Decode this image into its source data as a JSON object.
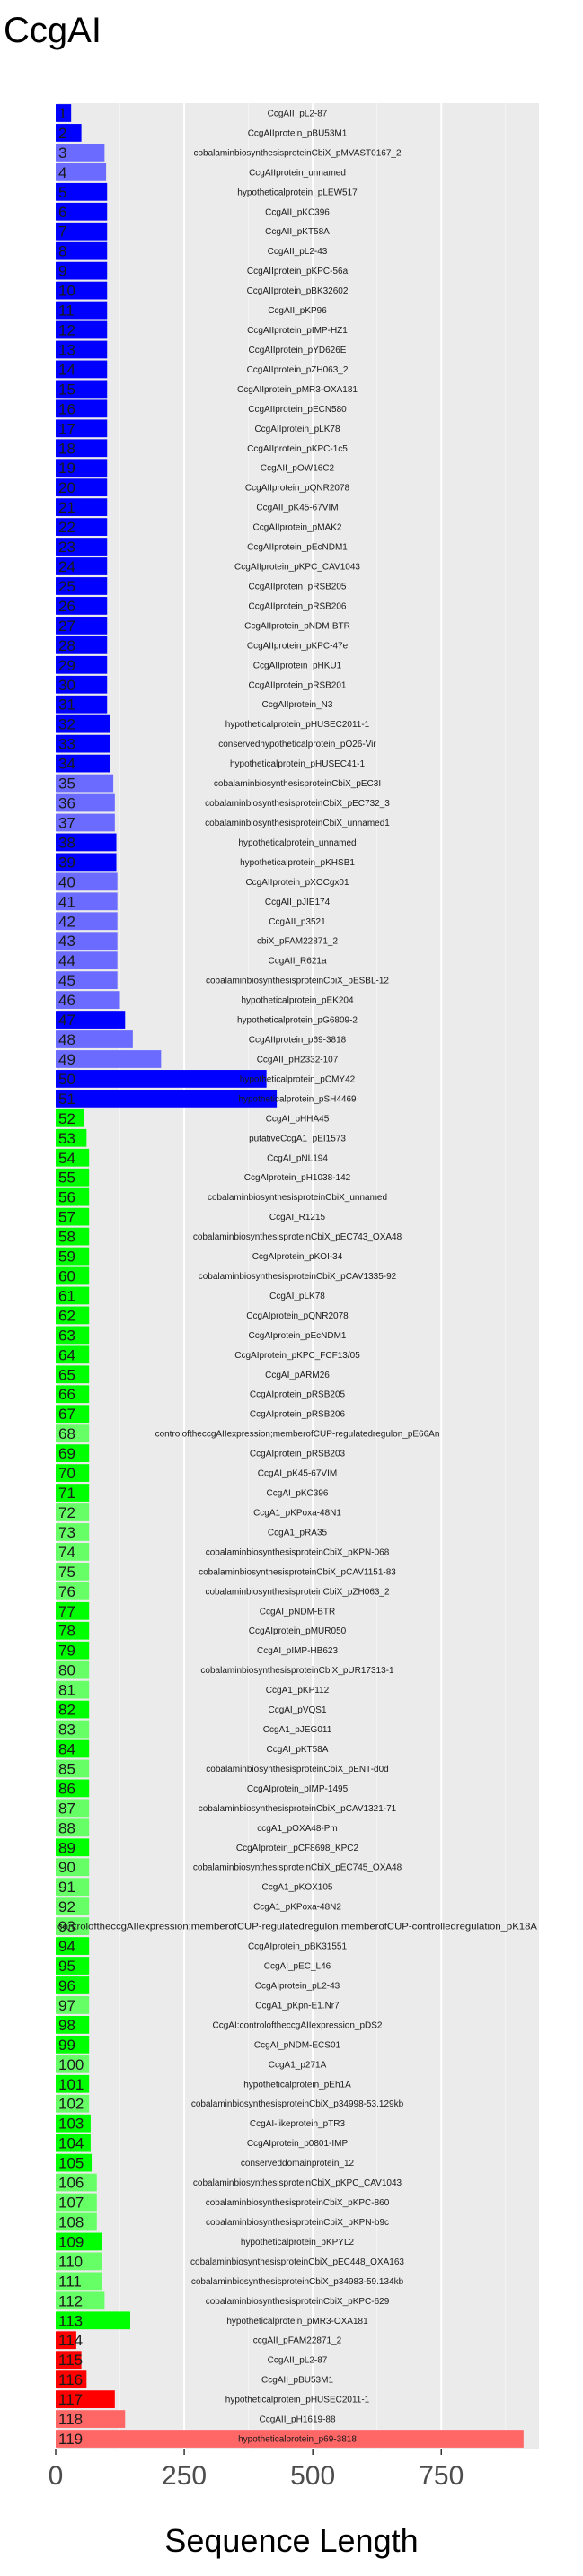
{
  "chart_data": {
    "type": "bar",
    "orientation": "horizontal",
    "title": "CcgAI",
    "xlabel": "Sequence Length",
    "ylabel": "",
    "xlim": [
      0,
      940
    ],
    "x_ticks": [
      0,
      250,
      500,
      750
    ],
    "grid": true,
    "legend": "none",
    "colors": {
      "panel": "#ebebeb",
      "grid_major": "#ffffff",
      "grid_minor": "#f5f5f5",
      "blue_dark": "#0000ff",
      "blue_light": "#6b6bff",
      "green_dark": "#00ff00",
      "green_light": "#66ff66",
      "red_dark": "#ff0000",
      "red_light": "#ff6666"
    },
    "bars": [
      {
        "id": "1",
        "label": "CcgAII_pL2-87",
        "value": 30,
        "color": "#0000ff"
      },
      {
        "id": "2",
        "label": "CcgAIIprotein_pBU53M1",
        "value": 50,
        "color": "#0000ff"
      },
      {
        "id": "3",
        "label": "cobalaminbiosynthesisproteinCbiX_pMVAST0167_2",
        "value": 95,
        "color": "#6b6bff"
      },
      {
        "id": "4",
        "label": "CcgAIIprotein_unnamed",
        "value": 98,
        "color": "#6b6bff"
      },
      {
        "id": "5",
        "label": "hypotheticalprotein_pLEW517",
        "value": 100,
        "color": "#0000ff"
      },
      {
        "id": "6",
        "label": "CcgAII_pKC396",
        "value": 100,
        "color": "#0000ff"
      },
      {
        "id": "7",
        "label": "CcgAII_pKT58A",
        "value": 100,
        "color": "#0000ff"
      },
      {
        "id": "8",
        "label": "CcgAII_pL2-43",
        "value": 100,
        "color": "#0000ff"
      },
      {
        "id": "9",
        "label": "CcgAIIprotein_pKPC-56a",
        "value": 100,
        "color": "#0000ff"
      },
      {
        "id": "10",
        "label": "CcgAIIprotein_pBK32602",
        "value": 100,
        "color": "#0000ff"
      },
      {
        "id": "11",
        "label": "CcgAII_pKP96",
        "value": 100,
        "color": "#0000ff"
      },
      {
        "id": "12",
        "label": "CcgAIIprotein_pIMP-HZ1",
        "value": 100,
        "color": "#0000ff"
      },
      {
        "id": "13",
        "label": "CcgAIIprotein_pYD626E",
        "value": 100,
        "color": "#0000ff"
      },
      {
        "id": "14",
        "label": "CcgAIIprotein_pZH063_2",
        "value": 100,
        "color": "#0000ff"
      },
      {
        "id": "15",
        "label": "CcgAIIprotein_pMR3-OXA181",
        "value": 100,
        "color": "#0000ff"
      },
      {
        "id": "16",
        "label": "CcgAIIprotein_pECN580",
        "value": 100,
        "color": "#0000ff"
      },
      {
        "id": "17",
        "label": "CcgAIIprotein_pLK78",
        "value": 100,
        "color": "#0000ff"
      },
      {
        "id": "18",
        "label": "CcgAIIprotein_pKPC-1c5",
        "value": 100,
        "color": "#0000ff"
      },
      {
        "id": "19",
        "label": "CcgAII_pOW16C2",
        "value": 100,
        "color": "#0000ff"
      },
      {
        "id": "20",
        "label": "CcgAIIprotein_pQNR2078",
        "value": 100,
        "color": "#0000ff"
      },
      {
        "id": "21",
        "label": "CcgAII_pK45-67VIM",
        "value": 100,
        "color": "#0000ff"
      },
      {
        "id": "22",
        "label": "CcgAIIprotein_pMAK2",
        "value": 100,
        "color": "#0000ff"
      },
      {
        "id": "23",
        "label": "CcgAIIprotein_pEcNDM1",
        "value": 100,
        "color": "#0000ff"
      },
      {
        "id": "24",
        "label": "CcgAIIprotein_pKPC_CAV1043",
        "value": 100,
        "color": "#0000ff"
      },
      {
        "id": "25",
        "label": "CcgAIIprotein_pRSB205",
        "value": 100,
        "color": "#0000ff"
      },
      {
        "id": "26",
        "label": "CcgAIIprotein_pRSB206",
        "value": 100,
        "color": "#0000ff"
      },
      {
        "id": "27",
        "label": "CcgAIIprotein_pNDM-BTR",
        "value": 100,
        "color": "#0000ff"
      },
      {
        "id": "28",
        "label": "CcgAIIprotein_pKPC-47e",
        "value": 100,
        "color": "#0000ff"
      },
      {
        "id": "29",
        "label": "CcgAIIprotein_pHKU1",
        "value": 100,
        "color": "#0000ff"
      },
      {
        "id": "30",
        "label": "CcgAIIprotein_pRSB201",
        "value": 100,
        "color": "#0000ff"
      },
      {
        "id": "31",
        "label": "CcgAIIprotein_N3",
        "value": 100,
        "color": "#0000ff"
      },
      {
        "id": "32",
        "label": "hypotheticalprotein_pHUSEC2011-1",
        "value": 105,
        "color": "#0000ff"
      },
      {
        "id": "33",
        "label": "conservedhypotheticalprotein_pO26-Vir",
        "value": 105,
        "color": "#0000ff"
      },
      {
        "id": "34",
        "label": "hypotheticalprotein_pHUSEC41-1",
        "value": 105,
        "color": "#0000ff"
      },
      {
        "id": "35",
        "label": "cobalaminbiosynthesisproteinCbiX_pEC3I",
        "value": 112,
        "color": "#6b6bff"
      },
      {
        "id": "36",
        "label": "cobalaminbiosynthesisproteinCbiX_pEC732_3",
        "value": 115,
        "color": "#6b6bff"
      },
      {
        "id": "37",
        "label": "cobalaminbiosynthesisproteinCbiX_unnamed1",
        "value": 115,
        "color": "#6b6bff"
      },
      {
        "id": "38",
        "label": "hypotheticalprotein_unnamed",
        "value": 118,
        "color": "#0000ff"
      },
      {
        "id": "39",
        "label": "hypotheticalprotein_pKHSB1",
        "value": 118,
        "color": "#0000ff"
      },
      {
        "id": "40",
        "label": "CcgAIIprotein_pXOCgx01",
        "value": 120,
        "color": "#6b6bff"
      },
      {
        "id": "41",
        "label": "CcgAII_pJIE174",
        "value": 120,
        "color": "#6b6bff"
      },
      {
        "id": "42",
        "label": "CcgAII_p3521",
        "value": 120,
        "color": "#6b6bff"
      },
      {
        "id": "43",
        "label": "cbiX_pFAM22871_2",
        "value": 120,
        "color": "#6b6bff"
      },
      {
        "id": "44",
        "label": "CcgAII_R621a",
        "value": 120,
        "color": "#6b6bff"
      },
      {
        "id": "45",
        "label": "cobalaminbiosynthesisproteinCbiX_pESBL-12",
        "value": 120,
        "color": "#6b6bff"
      },
      {
        "id": "46",
        "label": "hypotheticalprotein_pEK204",
        "value": 125,
        "color": "#6b6bff"
      },
      {
        "id": "47",
        "label": "hypotheticalprotein_pG6809-2",
        "value": 135,
        "color": "#0000ff"
      },
      {
        "id": "48",
        "label": "CcgAIIprotein_p69-3818",
        "value": 150,
        "color": "#6b6bff"
      },
      {
        "id": "49",
        "label": "CcgAII_pH2332-107",
        "value": 205,
        "color": "#6b6bff"
      },
      {
        "id": "50",
        "label": "hypotheticalprotein_pCMY42",
        "value": 410,
        "color": "#0000ff"
      },
      {
        "id": "51",
        "label": "hypotheticalprotein_pSH4469",
        "value": 430,
        "color": "#0000ff"
      },
      {
        "id": "52",
        "label": "CcgAI_pHHA45",
        "value": 55,
        "color": "#00ff00"
      },
      {
        "id": "53",
        "label": "putativeCcgA1_pEI1573",
        "value": 60,
        "color": "#00ff00"
      },
      {
        "id": "54",
        "label": "CcgAI_pNL194",
        "value": 65,
        "color": "#00ff00"
      },
      {
        "id": "55",
        "label": "CcgAIprotein_pH1038-142",
        "value": 65,
        "color": "#00ff00"
      },
      {
        "id": "56",
        "label": "cobalaminbiosynthesisproteinCbiX_unnamed",
        "value": 65,
        "color": "#00ff00"
      },
      {
        "id": "57",
        "label": "CcgAI_R1215",
        "value": 65,
        "color": "#00ff00"
      },
      {
        "id": "58",
        "label": "cobalaminbiosynthesisproteinCbiX_pEC743_OXA48",
        "value": 65,
        "color": "#00ff00"
      },
      {
        "id": "59",
        "label": "CcgAIprotein_pKOI-34",
        "value": 65,
        "color": "#00ff00"
      },
      {
        "id": "60",
        "label": "cobalaminbiosynthesisproteinCbiX_pCAV1335-92",
        "value": 65,
        "color": "#00ff00"
      },
      {
        "id": "61",
        "label": "CcgAI_pLK78",
        "value": 65,
        "color": "#00ff00"
      },
      {
        "id": "62",
        "label": "CcgAIprotein_pQNR2078",
        "value": 65,
        "color": "#00ff00"
      },
      {
        "id": "63",
        "label": "CcgAIprotein_pEcNDM1",
        "value": 65,
        "color": "#00ff00"
      },
      {
        "id": "64",
        "label": "CcgAIprotein_pKPC_FCF13/05",
        "value": 65,
        "color": "#00ff00"
      },
      {
        "id": "65",
        "label": "CcgAI_pARM26",
        "value": 65,
        "color": "#00ff00"
      },
      {
        "id": "66",
        "label": "CcgAIprotein_pRSB205",
        "value": 65,
        "color": "#00ff00"
      },
      {
        "id": "67",
        "label": "CcgAIprotein_pRSB206",
        "value": 65,
        "color": "#00ff00"
      },
      {
        "id": "68",
        "label": "controloftheccgAIIexpression;memberofCUP-regulatedregulon_pE66An",
        "value": 65,
        "color": "#66ff66"
      },
      {
        "id": "69",
        "label": "CcgAIprotein_pRSB203",
        "value": 65,
        "color": "#00ff00"
      },
      {
        "id": "70",
        "label": "CcgAI_pK45-67VIM",
        "value": 65,
        "color": "#00ff00"
      },
      {
        "id": "71",
        "label": "CcgAI_pKC396",
        "value": 65,
        "color": "#00ff00"
      },
      {
        "id": "72",
        "label": "CcgA1_pKPoxa-48N1",
        "value": 65,
        "color": "#66ff66"
      },
      {
        "id": "73",
        "label": "CcgA1_pRA35",
        "value": 65,
        "color": "#66ff66"
      },
      {
        "id": "74",
        "label": "cobalaminbiosynthesisproteinCbiX_pKPN-068",
        "value": 65,
        "color": "#66ff66"
      },
      {
        "id": "75",
        "label": "cobalaminbiosynthesisproteinCbiX_pCAV1151-83",
        "value": 65,
        "color": "#66ff66"
      },
      {
        "id": "76",
        "label": "cobalaminbiosynthesisproteinCbiX_pZH063_2",
        "value": 65,
        "color": "#66ff66"
      },
      {
        "id": "77",
        "label": "CcgAI_pNDM-BTR",
        "value": 65,
        "color": "#00ff00"
      },
      {
        "id": "78",
        "label": "CcgAIprotein_pMUR050",
        "value": 65,
        "color": "#00ff00"
      },
      {
        "id": "79",
        "label": "CcgAI_pIMP-HB623",
        "value": 65,
        "color": "#00ff00"
      },
      {
        "id": "80",
        "label": "cobalaminbiosynthesisproteinCbiX_pUR17313-1",
        "value": 65,
        "color": "#66ff66"
      },
      {
        "id": "81",
        "label": "CcgA1_pKP112",
        "value": 65,
        "color": "#66ff66"
      },
      {
        "id": "82",
        "label": "CcgAI_pVQS1",
        "value": 65,
        "color": "#00ff00"
      },
      {
        "id": "83",
        "label": "CcgA1_pJEG011",
        "value": 65,
        "color": "#66ff66"
      },
      {
        "id": "84",
        "label": "CcgAI_pKT58A",
        "value": 65,
        "color": "#00ff00"
      },
      {
        "id": "85",
        "label": "cobalaminbiosynthesisproteinCbiX_pENT-d0d",
        "value": 65,
        "color": "#66ff66"
      },
      {
        "id": "86",
        "label": "CcgAIprotein_pIMP-1495",
        "value": 65,
        "color": "#00ff00"
      },
      {
        "id": "87",
        "label": "cobalaminbiosynthesisproteinCbiX_pCAV1321-71",
        "value": 65,
        "color": "#66ff66"
      },
      {
        "id": "88",
        "label": "ccgA1_pOXA48-Pm",
        "value": 65,
        "color": "#66ff66"
      },
      {
        "id": "89",
        "label": "CcgAIprotein_pCF8698_KPC2",
        "value": 65,
        "color": "#00ff00"
      },
      {
        "id": "90",
        "label": "cobalaminbiosynthesisproteinCbiX_pEC745_OXA48",
        "value": 65,
        "color": "#66ff66"
      },
      {
        "id": "91",
        "label": "CcgA1_pKOX105",
        "value": 65,
        "color": "#66ff66"
      },
      {
        "id": "92",
        "label": "CcgA1_pKPoxa-48N2",
        "value": 65,
        "color": "#66ff66"
      },
      {
        "id": "93",
        "label": "controloftheccgAIIexpression;memberofCUP-regulatedregulon,memberofCUP-controlledregulation_pK18A",
        "value": 65,
        "color": "#66ff66"
      },
      {
        "id": "94",
        "label": "CcgAIprotein_pBK31551",
        "value": 65,
        "color": "#00ff00"
      },
      {
        "id": "95",
        "label": "CcgAI_pEC_L46",
        "value": 65,
        "color": "#00ff00"
      },
      {
        "id": "96",
        "label": "CcgAIprotein_pL2-43",
        "value": 65,
        "color": "#00ff00"
      },
      {
        "id": "97",
        "label": "CcgA1_pKpn-E1.Nr7",
        "value": 65,
        "color": "#66ff66"
      },
      {
        "id": "98",
        "label": "CcgAI:controloftheccgAIIexpression_pDS2",
        "value": 65,
        "color": "#00ff00"
      },
      {
        "id": "99",
        "label": "CcgAI_pNDM-ECS01",
        "value": 65,
        "color": "#00ff00"
      },
      {
        "id": "100",
        "label": "CcgA1_p271A",
        "value": 65,
        "color": "#66ff66"
      },
      {
        "id": "101",
        "label": "hypotheticalprotein_pEh1A",
        "value": 65,
        "color": "#00ff00"
      },
      {
        "id": "102",
        "label": "cobalaminbiosynthesisproteinCbiX_p34998-53.129kb",
        "value": 65,
        "color": "#66ff66"
      },
      {
        "id": "103",
        "label": "CcgAI-likeprotein_pTR3",
        "value": 68,
        "color": "#00ff00"
      },
      {
        "id": "104",
        "label": "CcgAIprotein_p0801-IMP",
        "value": 68,
        "color": "#00ff00"
      },
      {
        "id": "105",
        "label": "conserveddomainprotein_12",
        "value": 70,
        "color": "#00ff00"
      },
      {
        "id": "106",
        "label": "cobalaminbiosynthesisproteinCbiX_pKPC_CAV1043",
        "value": 80,
        "color": "#66ff66"
      },
      {
        "id": "107",
        "label": "cobalaminbiosynthesisproteinCbiX_pKPC-860",
        "value": 80,
        "color": "#66ff66"
      },
      {
        "id": "108",
        "label": "cobalaminbiosynthesisproteinCbiX_pKPN-b9c",
        "value": 80,
        "color": "#66ff66"
      },
      {
        "id": "109",
        "label": "hypotheticalprotein_pKPYL2",
        "value": 90,
        "color": "#00ff00"
      },
      {
        "id": "110",
        "label": "cobalaminbiosynthesisproteinCbiX_pEC448_OXA163",
        "value": 90,
        "color": "#66ff66"
      },
      {
        "id": "111",
        "label": "cobalaminbiosynthesisproteinCbiX_p34983-59.134kb",
        "value": 90,
        "color": "#66ff66"
      },
      {
        "id": "112",
        "label": "cobalaminbiosynthesisproteinCbiX_pKPC-629",
        "value": 95,
        "color": "#66ff66"
      },
      {
        "id": "113",
        "label": "hypotheticalprotein_pMR3-OXA181",
        "value": 145,
        "color": "#00ff00"
      },
      {
        "id": "114",
        "label": "ccgAII_pFAM22871_2",
        "value": 40,
        "color": "#ff0000"
      },
      {
        "id": "115",
        "label": "CcgAII_pL2-87",
        "value": 50,
        "color": "#ff0000"
      },
      {
        "id": "116",
        "label": "CcgAII_pBU53M1",
        "value": 60,
        "color": "#ff0000"
      },
      {
        "id": "117",
        "label": "hypotheticalprotein_pHUSEC2011-1",
        "value": 115,
        "color": "#ff0000"
      },
      {
        "id": "118",
        "label": "CcgAII_pH1619-88",
        "value": 135,
        "color": "#ff6666"
      },
      {
        "id": "119",
        "label": "hypotheticalprotein_p69-3818",
        "value": 910,
        "color": "#ff6666"
      }
    ]
  }
}
